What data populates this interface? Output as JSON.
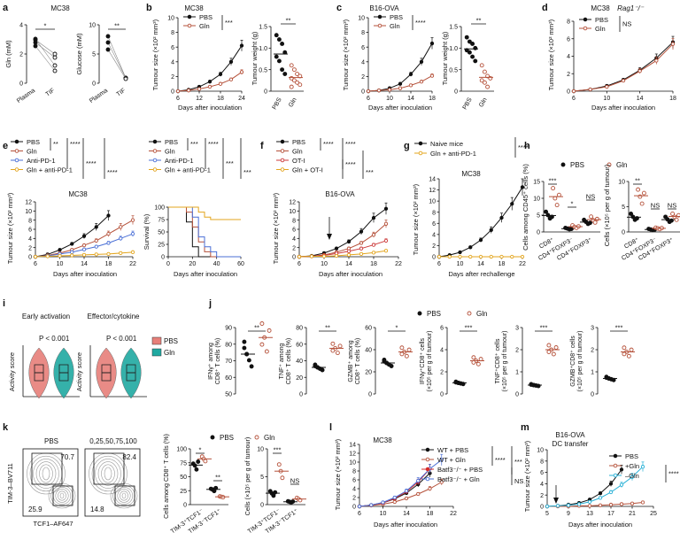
{
  "colors": {
    "pbs": "#111111",
    "gln": "#b5513a",
    "anti": "#4a6fd6",
    "combo": "#e3a51d",
    "oti": "#cc3a3a",
    "cyan": "#27b0d6",
    "violin_pbs": "#e77f79",
    "violin_gln": "#20a9a1",
    "red": "#d62a2a",
    "blue": "#4a6fd6"
  },
  "panels": {
    "a": {
      "letter": "a",
      "title": "MC38",
      "y1": "Gln (mM)",
      "y2": "Glucose (mM)",
      "x": [
        "Plasma",
        "TIF"
      ],
      "sig1": "*",
      "sig2": "**",
      "t1": [
        "0",
        "2",
        "4"
      ],
      "t2": [
        "0",
        "5",
        "10"
      ]
    },
    "b": {
      "letter": "b",
      "title": "MC38",
      "ylab": "Tumour size (×10² mm³)",
      "xlab": "Days after inoculation",
      "leg": [
        "PBS",
        "Gln"
      ],
      "sig": "***",
      "ticks_x": [
        "6",
        "12",
        "18",
        "24"
      ],
      "ticks_y": [
        "0",
        "2",
        "4",
        "6",
        "8",
        "10"
      ],
      "wt_ylab": "Tumour weight (g)",
      "wt_x": [
        "PBS",
        "Gln"
      ],
      "wt_sig": "**",
      "wt_ticks": [
        "0",
        "0.5",
        "1.0",
        "1.5"
      ]
    },
    "c": {
      "letter": "c",
      "title": "B16-OVA",
      "ylab": "Tumour size (×10² mm³)",
      "xlab": "Days after inoculation",
      "leg": [
        "PBS",
        "Gln"
      ],
      "sig": "****",
      "ticks_x": [
        "6",
        "10",
        "14",
        "18"
      ],
      "ticks_y": [
        "0",
        "2",
        "4",
        "6",
        "8",
        "10"
      ],
      "wt_ylab": "Tumour weight (g)",
      "wt_x": [
        "PBS",
        "Gln"
      ],
      "wt_sig": "**",
      "wt_ticks": [
        "0",
        "0.5",
        "1.0",
        "1.5"
      ]
    },
    "d": {
      "letter": "d",
      "title": "MC38",
      "title2": "Rag1⁻/⁻",
      "ylab": "Tumour size (×10² mm³)",
      "xlab": "Days after inoculation",
      "leg": [
        "PBS",
        "Gln"
      ],
      "sig": "NS",
      "ticks_x": [
        "6",
        "10",
        "14",
        "18"
      ],
      "ticks_y": [
        "0",
        "2",
        "4",
        "6",
        "8"
      ]
    },
    "e": {
      "letter": "e",
      "title": "MC38",
      "leg": [
        "PBS",
        "Gln",
        "Anti-PD-1",
        "Gln + anti-PD-1"
      ],
      "sig1": [
        "**",
        "****",
        "****",
        "****"
      ],
      "sig2": [
        "***",
        "****",
        "***",
        "***"
      ],
      "ylab": "Tumour size (×10² mm³)",
      "xlab": "Days after inoculation",
      "ticks_x": [
        "6",
        "10",
        "14",
        "18",
        "22"
      ],
      "ticks_y": [
        "0",
        "2",
        "4",
        "6",
        "8",
        "10",
        "12"
      ],
      "surv_ylab": "Survival (%)",
      "surv_ticks_x": [
        "0",
        "20",
        "40",
        "60"
      ],
      "surv_ticks_y": [
        "0",
        "25",
        "50",
        "75",
        "100"
      ]
    },
    "f": {
      "letter": "f",
      "title": "B16-OVA",
      "leg": [
        "PBS",
        "Gln",
        "OT-I",
        "Gln + OT-I"
      ],
      "sig": [
        "****",
        "****",
        "****",
        "***"
      ],
      "ylab": "Tumour size (×10² mm³)",
      "xlab": "Days after inoculation",
      "ticks_x": [
        "6",
        "10",
        "14",
        "18",
        "22"
      ],
      "ticks_y": [
        "0",
        "2",
        "4",
        "6",
        "8",
        "10",
        "12"
      ]
    },
    "g": {
      "letter": "g",
      "title": "MC38",
      "leg": [
        "Naive mice",
        "Gln + anti-PD-1"
      ],
      "sig": "****",
      "ylab": "Tumour size (×10² mm³)",
      "xlab": "Days after rechallenge",
      "ticks_x": [
        "6",
        "10",
        "14",
        "18",
        "22"
      ],
      "ticks_y": [
        "0",
        "2",
        "4",
        "6",
        "8",
        "10",
        "12",
        "14"
      ]
    },
    "h": {
      "letter": "h",
      "leg": [
        "PBS",
        "Gln"
      ],
      "ylab1": "Cells among CD45⁺ cells (%)",
      "ylab2": "Cells (×10⁵ per g of tumour)",
      "cats": [
        "CD8⁺",
        "CD4⁺FOXP3⁻",
        "CD4⁺FOXP3⁺"
      ],
      "sig1": [
        "***",
        "*",
        "NS"
      ],
      "sig2": [
        "**",
        "NS",
        "NS"
      ],
      "t1": [
        "0",
        "5",
        "10",
        "15"
      ],
      "t2": [
        "0",
        "5",
        "10"
      ]
    },
    "i": {
      "letter": "i",
      "t1": "Early activation",
      "t2": "Effector/cytokine",
      "p": "P < 0.001",
      "ylab": "Activity score",
      "leg": [
        "PBS",
        "Gln"
      ]
    },
    "j": {
      "letter": "j",
      "leg": [
        "PBS",
        "Gln"
      ],
      "sig": [
        "**",
        "**",
        "*",
        "***",
        "***",
        "***"
      ],
      "ylabs": [
        [
          "IFNγ⁺ among",
          "CD8⁺ T cells (%)"
        ],
        [
          "TNF⁺ among",
          "CD8⁺ T cells (%)"
        ],
        [
          "GZMB⁺ among",
          "CD8⁺ T cells (%)"
        ],
        [
          "IFNγ⁺CD8⁺ cells",
          "(×10⁵ per g of tumour)"
        ],
        [
          "TNF⁺CD8⁺ cells",
          "(×10⁵ per g of tumour)"
        ],
        [
          "GZMB⁺CD8⁺ cells",
          "(×10⁵ per g of tumour)"
        ]
      ],
      "ticks": [
        [
          "50",
          "60",
          "70",
          "80",
          "90"
        ],
        [
          "0",
          "20",
          "40",
          "60",
          "80"
        ],
        [
          "0",
          "20",
          "40",
          "60"
        ],
        [
          "0",
          "2",
          "4",
          "6"
        ],
        [
          "0",
          "1",
          "2",
          "3"
        ],
        [
          "0",
          "1",
          "2",
          "3"
        ]
      ]
    },
    "k": {
      "letter": "k",
      "t1": "PBS",
      "t2": [
        "0",
        "25",
        "50",
        "75",
        "100"
      ],
      "q": [
        "70.7",
        "25.9",
        "82.4",
        "14.8"
      ],
      "ylab": "TIM-3–BV711",
      "xlab": "TCF1–AF647",
      "leg": [
        "PBS",
        "Gln"
      ],
      "ylab2": "Cells among CD8⁺ T cells (%)",
      "ylab3": "Cells (×10⁵ per g of tumour)",
      "cats": [
        "TIM-3⁺TCF1⁻",
        "TIM-3⁻TCF1⁺"
      ],
      "sig2": [
        "*",
        "**"
      ],
      "sig3": [
        "***",
        "NS"
      ],
      "t3": [
        "0",
        "5",
        "10"
      ]
    },
    "l": {
      "letter": "l",
      "title": "MC38",
      "leg": [
        "WT + PBS",
        "WT + Gln",
        "Batf3⁻/⁻ + PBS",
        "Batf3⁻/⁻ + Gln"
      ],
      "sig": [
        "****",
        "***",
        "NS"
      ],
      "ylab": "Tumour size (×10² mm³)",
      "xlab": "Days after inoculation",
      "ticks_x": [
        "6",
        "10",
        "14",
        "18",
        "22"
      ],
      "ticks_y": [
        "0",
        "2",
        "4",
        "6",
        "8",
        "10",
        "12",
        "14"
      ]
    },
    "m": {
      "letter": "m",
      "title": "B16-OVA",
      "title2": "DC transfer",
      "leg": [
        "PBS",
        "+Gln",
        "–Gln"
      ],
      "sig": "****",
      "ylab": "Tumour size (×10² mm³)",
      "xlab": "Days after inoculation",
      "ticks_x": [
        "5",
        "9",
        "13",
        "17",
        "21",
        "25"
      ],
      "ticks_y": [
        "0",
        "2",
        "4",
        "6",
        "8",
        "10"
      ]
    }
  },
  "chart_data": [
    {
      "panel": "b",
      "type": "line",
      "x": [
        6,
        9,
        12,
        15,
        18,
        21,
        24
      ],
      "series": [
        {
          "name": "PBS",
          "values": [
            0,
            0.2,
            0.6,
            1.3,
            2.3,
            4.0,
            6.2
          ]
        },
        {
          "name": "Gln",
          "values": [
            0,
            0.1,
            0.3,
            0.6,
            1.0,
            1.6,
            2.6
          ]
        }
      ],
      "ylim": [
        0,
        10
      ]
    },
    {
      "panel": "b-weight",
      "type": "scatter",
      "categories": [
        "PBS",
        "Gln"
      ],
      "values": [
        [
          1.3,
          1.2,
          1.1,
          0.9,
          0.8,
          0.7,
          0.5,
          0.4
        ],
        [
          0.6,
          0.5,
          0.4,
          0.35,
          0.3,
          0.25,
          0.2,
          0.15,
          0.1
        ]
      ],
      "ylim": [
        0,
        1.5
      ]
    },
    {
      "panel": "c",
      "type": "line",
      "x": [
        6,
        8,
        10,
        12,
        14,
        16,
        18
      ],
      "series": [
        {
          "name": "PBS",
          "values": [
            0,
            0.1,
            0.4,
            1.0,
            2.3,
            4.0,
            6.5
          ]
        },
        {
          "name": "Gln",
          "values": [
            0,
            0.1,
            0.2,
            0.4,
            0.8,
            1.3,
            2.1
          ]
        }
      ],
      "ylim": [
        0,
        10
      ]
    },
    {
      "panel": "c-weight",
      "type": "scatter",
      "categories": [
        "PBS",
        "Gln"
      ],
      "values": [
        [
          1.25,
          1.15,
          1.1,
          1.0,
          0.95,
          0.9,
          0.8,
          0.7
        ],
        [
          0.6,
          0.45,
          0.35,
          0.3,
          0.25,
          0.2,
          0.1
        ]
      ],
      "ylim": [
        0,
        1.5
      ]
    },
    {
      "panel": "d",
      "type": "line",
      "x": [
        6,
        8,
        10,
        12,
        14,
        16,
        18
      ],
      "series": [
        {
          "name": "PBS",
          "values": [
            0,
            0.2,
            0.6,
            1.3,
            2.4,
            3.8,
            5.6
          ]
        },
        {
          "name": "Gln",
          "values": [
            0,
            0.2,
            0.5,
            1.2,
            2.3,
            3.5,
            5.4
          ]
        }
      ],
      "ylim": [
        0,
        8
      ]
    },
    {
      "panel": "e",
      "type": "line",
      "x": [
        6,
        8,
        10,
        12,
        14,
        16,
        18,
        20,
        22
      ],
      "series": [
        {
          "name": "PBS",
          "values": [
            0,
            0.5,
            1.5,
            2.8,
            4.5,
            6.5,
            9.0,
            null,
            null
          ]
        },
        {
          "name": "Gln",
          "values": [
            0,
            0.3,
            0.8,
            1.5,
            2.5,
            3.5,
            5.0,
            6.5,
            8.0
          ]
        },
        {
          "name": "Anti-PD-1",
          "values": [
            0,
            0.2,
            0.6,
            1.0,
            1.6,
            2.2,
            3.0,
            4.0,
            5.0
          ]
        },
        {
          "name": "Gln + anti-PD-1",
          "values": [
            0,
            0.1,
            0.2,
            0.3,
            0.4,
            0.5,
            0.6,
            0.8,
            1.0
          ]
        }
      ],
      "ylim": [
        0,
        12
      ]
    },
    {
      "panel": "e-survival",
      "type": "line",
      "x": [
        0,
        10,
        15,
        20,
        25,
        30,
        35,
        40,
        50,
        60
      ],
      "series": [
        {
          "name": "PBS",
          "values": [
            100,
            100,
            70,
            20,
            0,
            0,
            0,
            0,
            0,
            0
          ]
        },
        {
          "name": "Gln",
          "values": [
            100,
            100,
            90,
            60,
            30,
            10,
            0,
            0,
            0,
            0
          ]
        },
        {
          "name": "Anti-PD-1",
          "values": [
            100,
            100,
            100,
            80,
            40,
            20,
            10,
            0,
            0,
            0
          ]
        },
        {
          "name": "Gln + anti-PD-1",
          "values": [
            100,
            100,
            100,
            100,
            90,
            80,
            75,
            75,
            75,
            75
          ]
        }
      ],
      "ylim": [
        0,
        100
      ]
    },
    {
      "panel": "f",
      "type": "line",
      "x": [
        6,
        8,
        10,
        12,
        14,
        16,
        18,
        20
      ],
      "series": [
        {
          "name": "PBS",
          "values": [
            0,
            0.2,
            0.8,
            1.8,
            3.3,
            5.5,
            8.5,
            10.5
          ]
        },
        {
          "name": "Gln",
          "values": [
            0,
            0.1,
            0.4,
            1.0,
            1.8,
            3.0,
            4.8,
            7.2
          ]
        },
        {
          "name": "OT-I",
          "values": [
            0,
            0.1,
            0.3,
            0.7,
            1.2,
            1.8,
            2.6,
            3.5
          ]
        },
        {
          "name": "Gln + OT-I",
          "values": [
            0,
            0.1,
            0.1,
            0.2,
            0.4,
            0.6,
            0.9,
            1.3
          ]
        }
      ],
      "ylim": [
        0,
        12
      ]
    },
    {
      "panel": "g",
      "type": "line",
      "x": [
        6,
        8,
        10,
        12,
        14,
        16,
        18,
        20,
        22
      ],
      "series": [
        {
          "name": "Naive mice",
          "values": [
            0,
            0.3,
            0.8,
            1.7,
            3.0,
            4.8,
            7.0,
            9.5,
            12.5
          ]
        },
        {
          "name": "Gln + anti-PD-1",
          "values": [
            0,
            0,
            0,
            0,
            0,
            0,
            0,
            0,
            0
          ]
        }
      ],
      "ylim": [
        0,
        14
      ]
    },
    {
      "panel": "h-percent",
      "type": "scatter",
      "categories": [
        "CD8⁺",
        "CD4⁺FOXP3⁻",
        "CD4⁺FOXP3⁺"
      ],
      "series": [
        {
          "name": "PBS",
          "values": [
            5,
            1,
            3
          ]
        },
        {
          "name": "Gln",
          "values": [
            10,
            1.5,
            3.5
          ]
        }
      ],
      "ylim": [
        0,
        15
      ]
    },
    {
      "panel": "h-count",
      "type": "scatter",
      "categories": [
        "CD8⁺",
        "CD4⁺FOXP3⁻",
        "CD4⁺FOXP3⁺"
      ],
      "series": [
        {
          "name": "PBS",
          "values": [
            3,
            0.5,
            2.5
          ]
        },
        {
          "name": "Gln",
          "values": [
            7,
            0.7,
            3
          ]
        }
      ],
      "ylim": [
        0,
        10
      ]
    },
    {
      "panel": "j",
      "type": "scatter",
      "categories": [
        "IFNγ⁺ %",
        "TNF⁺ %",
        "GZMB⁺ %",
        "IFNγ⁺ count",
        "TNF⁺ count",
        "GZMB⁺ count"
      ],
      "series": [
        {
          "name": "PBS",
          "values": [
            74,
            32,
            28,
            1.0,
            0.4,
            0.7
          ]
        },
        {
          "name": "Gln",
          "values": [
            84,
            55,
            38,
            3.0,
            2.0,
            1.9
          ]
        }
      ]
    },
    {
      "panel": "k-percent",
      "type": "scatter",
      "categories": [
        "TIM-3⁺TCF1⁻",
        "TIM-3⁻TCF1⁺"
      ],
      "series": [
        {
          "name": "PBS",
          "values": [
            70,
            27
          ]
        },
        {
          "name": "Gln",
          "values": [
            82,
            14
          ]
        }
      ],
      "ylim": [
        0,
        100
      ]
    },
    {
      "panel": "k-count",
      "type": "scatter",
      "categories": [
        "TIM-3⁺TCF1⁻",
        "TIM-3⁻TCF1⁺"
      ],
      "series": [
        {
          "name": "PBS",
          "values": [
            2,
            0.5
          ]
        },
        {
          "name": "Gln",
          "values": [
            6,
            1
          ]
        }
      ],
      "ylim": [
        0,
        10
      ]
    },
    {
      "panel": "l",
      "type": "line",
      "x": [
        6,
        8,
        10,
        12,
        14,
        16,
        18,
        20
      ],
      "series": [
        {
          "name": "WT + PBS",
          "values": [
            0,
            0.3,
            0.8,
            1.7,
            3.0,
            5.0,
            7.5,
            null
          ]
        },
        {
          "name": "WT + Gln",
          "values": [
            0,
            0.2,
            0.5,
            1.0,
            1.8,
            2.8,
            4.0,
            5.5
          ]
        },
        {
          "name": "Batf3⁻/⁻ + PBS",
          "values": [
            0,
            0.3,
            0.8,
            1.8,
            3.3,
            5.5,
            8.5,
            null
          ]
        },
        {
          "name": "Batf3⁻/⁻ + Gln",
          "values": [
            0,
            0.3,
            0.9,
            2.0,
            3.5,
            5.8,
            8.5,
            10.5
          ]
        }
      ],
      "ylim": [
        0,
        14
      ]
    },
    {
      "panel": "m",
      "type": "line",
      "x": [
        5,
        7,
        9,
        11,
        13,
        15,
        17,
        19,
        21,
        23
      ],
      "series": [
        {
          "name": "PBS",
          "values": [
            0,
            0.1,
            0.3,
            0.6,
            1.2,
            2.3,
            4.0,
            6.5,
            null,
            null
          ]
        },
        {
          "name": "+Gln",
          "values": [
            0,
            0,
            0,
            0.1,
            0.1,
            0.2,
            0.3,
            0.4,
            0.5,
            0.7
          ]
        },
        {
          "name": "–Gln",
          "values": [
            0,
            0.1,
            0.2,
            0.4,
            0.8,
            1.5,
            2.5,
            3.8,
            5.2,
            7.0
          ]
        }
      ],
      "ylim": [
        0,
        10
      ]
    }
  ]
}
